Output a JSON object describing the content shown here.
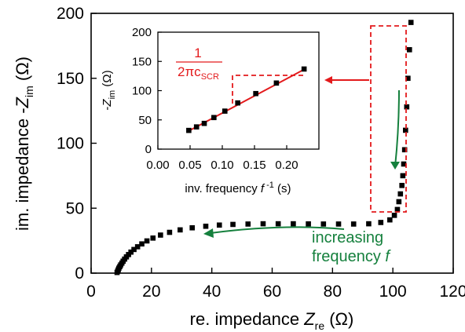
{
  "colors": {
    "marker": "#000000",
    "fit_line": "#e31a1c",
    "dashed_box": "#e31a1c",
    "red_arrow": "#e31a1c",
    "annotation": "#15803d"
  },
  "chart_data": [
    {
      "type": "scatter",
      "xlabel": {
        "main": "re. impedance ",
        "var": "Z",
        "sub": "re",
        "unit": " (Ω)"
      },
      "ylabel": {
        "main": "im. impedance -",
        "var": "Z",
        "sub": "im",
        "unit": " (Ω)"
      },
      "xlim": [
        0,
        120
      ],
      "ylim": [
        0,
        200
      ],
      "x_ticks": [
        0,
        20,
        40,
        60,
        80,
        100,
        120
      ],
      "y_ticks": [
        0,
        50,
        100,
        150,
        200
      ],
      "annotation": {
        "line1": "increasing",
        "line2": "frequency ",
        "var": "f"
      },
      "series": [
        {
          "x": [
            8.6,
            8.8,
            9.0,
            9.2,
            9.5,
            9.8,
            10.2,
            10.6,
            11.1,
            11.7,
            12.4,
            13.2,
            14.2,
            15.4,
            16.8,
            18.5,
            20.5,
            23.0,
            26.0,
            29.5,
            33.5,
            38.0,
            42.5,
            47.0,
            52.0,
            57.0,
            62.0,
            67.0,
            72.0,
            77.0,
            82.0,
            87.0,
            92.0,
            96.0,
            99.0,
            100.5,
            101.5,
            102.0,
            102.5,
            103.0,
            103.3,
            103.6,
            103.9,
            104.2,
            104.6,
            105.0,
            105.5,
            106.0
          ],
          "y": [
            0.5,
            1.5,
            2.6,
            3.8,
            5.0,
            6.3,
            7.7,
            9.2,
            10.8,
            12.5,
            14.3,
            16.2,
            18.2,
            20.3,
            22.5,
            24.8,
            27.0,
            29.3,
            31.4,
            33.3,
            34.9,
            36.1,
            37.0,
            37.5,
            37.8,
            38.0,
            38.0,
            38.0,
            37.9,
            37.8,
            37.8,
            37.8,
            38.0,
            39.0,
            41.0,
            44.5,
            49.0,
            55.0,
            61.0,
            67.5,
            75.0,
            84.0,
            95.0,
            110.0,
            128.0,
            150.0,
            172.0,
            193.0
          ]
        }
      ]
    },
    {
      "type": "line",
      "xlabel": {
        "main": "inv. frequency ",
        "var": "f",
        "sup": " -1",
        "unit": " (s)"
      },
      "ylabel": {
        "main": "-",
        "var": "Z",
        "sub": "im",
        "unit": " (Ω)"
      },
      "xlim": [
        0,
        0.25
      ],
      "ylim": [
        0,
        200
      ],
      "x_ticks": [
        "0.00",
        "0.05",
        "0.10",
        "0.15",
        "0.20"
      ],
      "y_ticks": [
        0,
        50,
        100,
        150,
        200
      ],
      "points": {
        "x": [
          0.048,
          0.06,
          0.072,
          0.087,
          0.104,
          0.124,
          0.152,
          0.184,
          0.227
        ],
        "y": [
          32,
          38,
          44,
          54,
          65,
          79,
          95,
          113,
          137
        ]
      },
      "fit": {
        "x": [
          0.046,
          0.23
        ],
        "y": [
          30,
          138
        ]
      },
      "slope_label": {
        "num": "1",
        "den": "2πc",
        "sub": "SCR"
      }
    }
  ]
}
